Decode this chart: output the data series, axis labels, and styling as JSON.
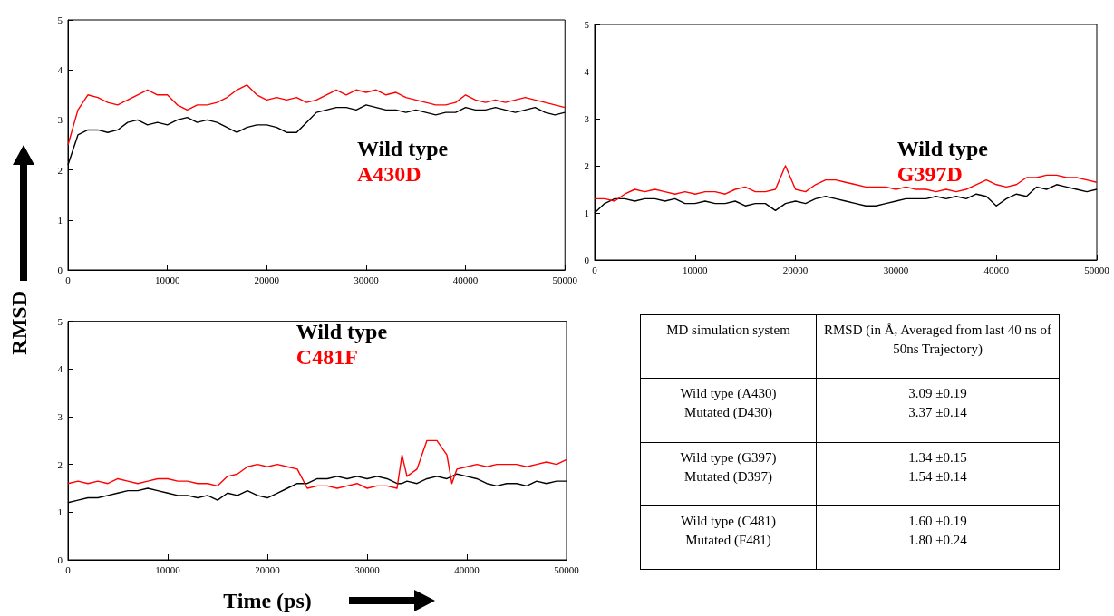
{
  "chart_data": [
    {
      "type": "line",
      "legend": "right",
      "xlim": [
        0,
        50000
      ],
      "xticks": [
        0,
        10000,
        20000,
        30000,
        40000,
        50000
      ],
      "ylim": [
        0,
        5
      ],
      "yticks": [
        0,
        1,
        2,
        3,
        4,
        5
      ],
      "grid": false,
      "x": [
        0,
        1000,
        2000,
        3000,
        4000,
        5000,
        6000,
        7000,
        8000,
        9000,
        10000,
        11000,
        12000,
        13000,
        14000,
        15000,
        16000,
        17000,
        18000,
        19000,
        20000,
        21000,
        22000,
        23000,
        24000,
        25000,
        26000,
        27000,
        28000,
        29000,
        30000,
        31000,
        32000,
        33000,
        34000,
        35000,
        36000,
        37000,
        38000,
        39000,
        40000,
        41000,
        42000,
        43000,
        44000,
        45000,
        46000,
        47000,
        48000,
        49000,
        50000
      ],
      "series": [
        {
          "name": "Wild type",
          "color": "#000000",
          "values": [
            2.1,
            2.7,
            2.8,
            2.8,
            2.75,
            2.8,
            2.95,
            3.0,
            2.9,
            2.95,
            2.9,
            3.0,
            3.05,
            2.95,
            3.0,
            2.95,
            2.85,
            2.75,
            2.85,
            2.9,
            2.9,
            2.85,
            2.75,
            2.75,
            2.95,
            3.15,
            3.2,
            3.25,
            3.25,
            3.2,
            3.3,
            3.25,
            3.2,
            3.2,
            3.15,
            3.2,
            3.15,
            3.1,
            3.15,
            3.15,
            3.25,
            3.2,
            3.2,
            3.25,
            3.2,
            3.15,
            3.2,
            3.25,
            3.15,
            3.1,
            3.15
          ]
        },
        {
          "name": "A430D",
          "color": "#ff0000",
          "values": [
            2.5,
            3.2,
            3.5,
            3.45,
            3.35,
            3.3,
            3.4,
            3.5,
            3.6,
            3.5,
            3.5,
            3.3,
            3.2,
            3.3,
            3.3,
            3.35,
            3.45,
            3.6,
            3.7,
            3.5,
            3.4,
            3.45,
            3.4,
            3.45,
            3.35,
            3.4,
            3.5,
            3.6,
            3.5,
            3.6,
            3.55,
            3.6,
            3.5,
            3.55,
            3.45,
            3.4,
            3.35,
            3.3,
            3.3,
            3.35,
            3.5,
            3.4,
            3.35,
            3.4,
            3.35,
            3.4,
            3.45,
            3.4,
            3.35,
            3.3,
            3.25
          ]
        }
      ]
    },
    {
      "type": "line",
      "legend": "right",
      "xlim": [
        0,
        50000
      ],
      "xticks": [
        0,
        10000,
        20000,
        30000,
        40000,
        50000
      ],
      "ylim": [
        0,
        5
      ],
      "yticks": [
        0,
        1,
        2,
        3,
        4,
        5
      ],
      "grid": false,
      "x": [
        0,
        1000,
        2000,
        3000,
        4000,
        5000,
        6000,
        7000,
        8000,
        9000,
        10000,
        11000,
        12000,
        13000,
        14000,
        15000,
        16000,
        17000,
        18000,
        19000,
        20000,
        21000,
        22000,
        23000,
        24000,
        25000,
        26000,
        27000,
        28000,
        29000,
        30000,
        31000,
        32000,
        33000,
        34000,
        35000,
        36000,
        37000,
        38000,
        39000,
        40000,
        41000,
        42000,
        43000,
        44000,
        45000,
        46000,
        47000,
        48000,
        49000,
        50000
      ],
      "series": [
        {
          "name": "Wild type",
          "color": "#000000",
          "values": [
            1.0,
            1.2,
            1.3,
            1.3,
            1.25,
            1.3,
            1.3,
            1.25,
            1.3,
            1.2,
            1.2,
            1.25,
            1.2,
            1.2,
            1.25,
            1.15,
            1.2,
            1.2,
            1.05,
            1.2,
            1.25,
            1.2,
            1.3,
            1.35,
            1.3,
            1.25,
            1.2,
            1.15,
            1.15,
            1.2,
            1.25,
            1.3,
            1.3,
            1.3,
            1.35,
            1.3,
            1.35,
            1.3,
            1.4,
            1.35,
            1.15,
            1.3,
            1.4,
            1.35,
            1.55,
            1.5,
            1.6,
            1.55,
            1.5,
            1.45,
            1.5
          ]
        },
        {
          "name": "G397D",
          "color": "#ff0000",
          "values": [
            1.3,
            1.3,
            1.25,
            1.4,
            1.5,
            1.45,
            1.5,
            1.45,
            1.4,
            1.45,
            1.4,
            1.45,
            1.45,
            1.4,
            1.5,
            1.55,
            1.45,
            1.45,
            1.5,
            2.0,
            1.5,
            1.45,
            1.6,
            1.7,
            1.7,
            1.65,
            1.6,
            1.55,
            1.55,
            1.55,
            1.5,
            1.55,
            1.5,
            1.5,
            1.45,
            1.5,
            1.45,
            1.5,
            1.6,
            1.7,
            1.6,
            1.55,
            1.6,
            1.75,
            1.75,
            1.8,
            1.8,
            1.75,
            1.75,
            1.7,
            1.65
          ]
        }
      ]
    },
    {
      "type": "line",
      "legend": "top",
      "xlabel": "Time (ps)",
      "ylabel": "RMSD",
      "xlim": [
        0,
        50000
      ],
      "xticks": [
        0,
        10000,
        20000,
        30000,
        40000,
        50000
      ],
      "ylim": [
        0,
        5
      ],
      "yticks": [
        0,
        1,
        2,
        3,
        4,
        5
      ],
      "grid": false,
      "x": [
        0,
        1000,
        2000,
        3000,
        4000,
        5000,
        6000,
        7000,
        8000,
        9000,
        10000,
        11000,
        12000,
        13000,
        14000,
        15000,
        16000,
        17000,
        18000,
        19000,
        20000,
        21000,
        22000,
        23000,
        24000,
        25000,
        26000,
        27000,
        28000,
        29000,
        30000,
        31000,
        32000,
        33000,
        33500,
        34000,
        35000,
        36000,
        37000,
        38000,
        38500,
        39000,
        40000,
        41000,
        42000,
        43000,
        44000,
        45000,
        46000,
        47000,
        48000,
        49000,
        50000
      ],
      "series": [
        {
          "name": "Wild type",
          "color": "#000000",
          "values": [
            1.2,
            1.25,
            1.3,
            1.3,
            1.35,
            1.4,
            1.45,
            1.45,
            1.5,
            1.45,
            1.4,
            1.35,
            1.35,
            1.3,
            1.35,
            1.25,
            1.4,
            1.35,
            1.45,
            1.35,
            1.3,
            1.4,
            1.5,
            1.6,
            1.6,
            1.7,
            1.7,
            1.75,
            1.7,
            1.75,
            1.7,
            1.75,
            1.7,
            1.6,
            1.6,
            1.65,
            1.6,
            1.7,
            1.75,
            1.7,
            1.75,
            1.8,
            1.75,
            1.7,
            1.6,
            1.55,
            1.6,
            1.6,
            1.55,
            1.65,
            1.6,
            1.65,
            1.65
          ]
        },
        {
          "name": "C481F",
          "color": "#ff0000",
          "values": [
            1.6,
            1.65,
            1.6,
            1.65,
            1.6,
            1.7,
            1.65,
            1.6,
            1.65,
            1.7,
            1.7,
            1.65,
            1.65,
            1.6,
            1.6,
            1.55,
            1.75,
            1.8,
            1.95,
            2.0,
            1.95,
            2.0,
            1.95,
            1.9,
            1.5,
            1.55,
            1.55,
            1.5,
            1.55,
            1.6,
            1.5,
            1.55,
            1.55,
            1.5,
            2.2,
            1.75,
            1.9,
            2.5,
            2.5,
            2.2,
            1.6,
            1.9,
            1.95,
            2.0,
            1.95,
            2.0,
            2.0,
            2.0,
            1.95,
            2.0,
            2.05,
            2.0,
            2.1
          ]
        }
      ]
    },
    {
      "type": "other",
      "annotations": [
        "MD simulation system",
        "RMSD (in Å, Averaged from last 40 ns of 50ns Trajectory)",
        "Wild type (A430)\nMutated (D430)",
        "3.09 ±0.19\n3.37 ±0.14",
        "Wild type (G397)\nMutated (D397)",
        "1.34 ±0.15\n1.54 ±0.14",
        "Wild type (C481)\nMutated (F481)",
        "1.60 ±0.19\n1.80 ±0.24"
      ]
    }
  ]
}
